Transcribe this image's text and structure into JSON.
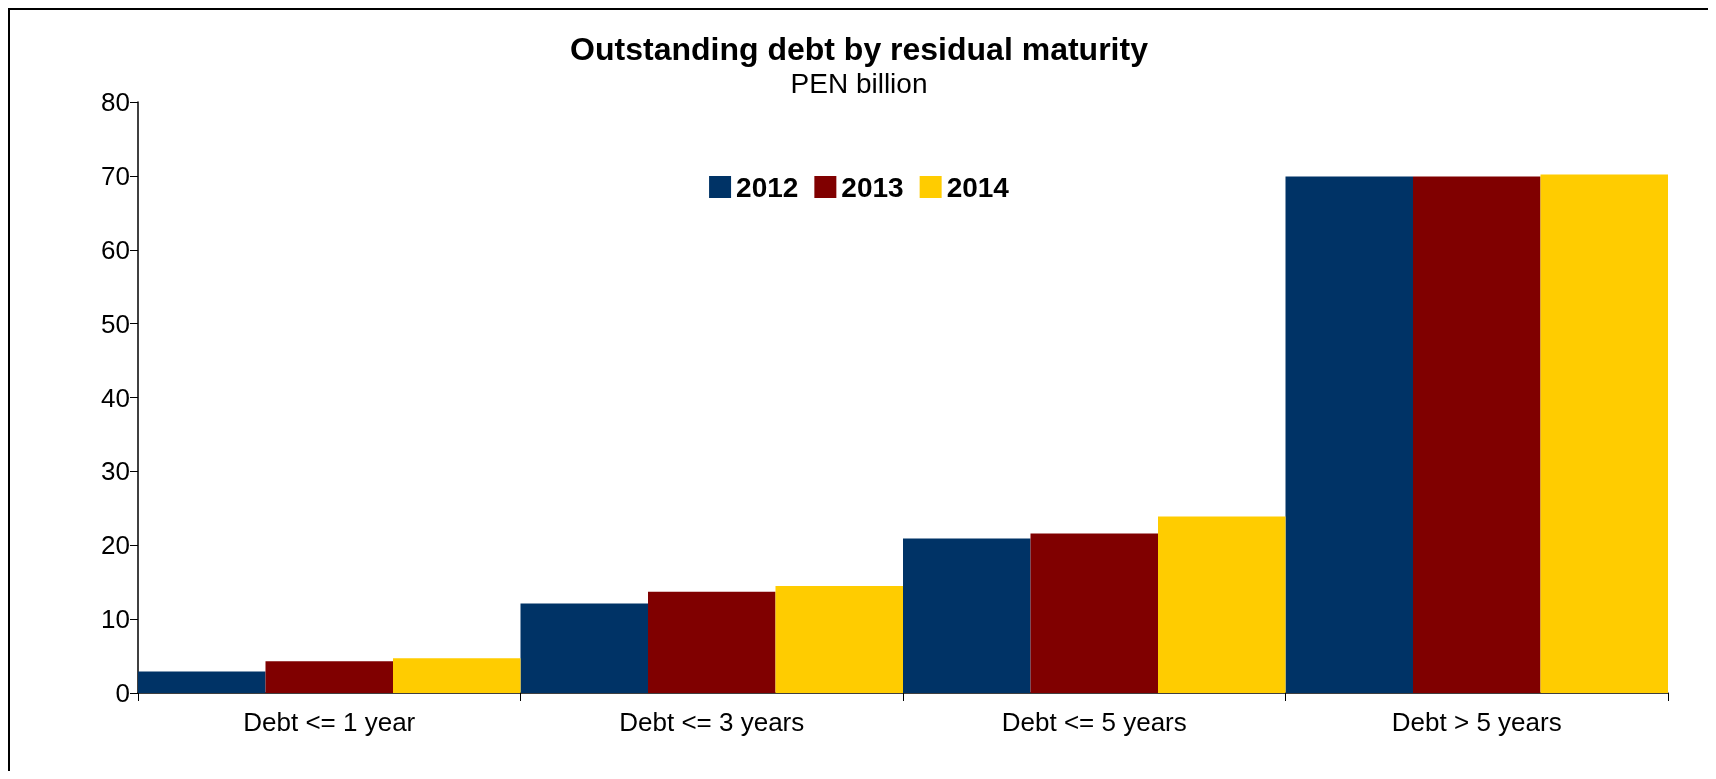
{
  "chart_data": {
    "type": "bar",
    "title": "Outstanding debt by residual maturity",
    "subtitle": "PEN billion",
    "categories": [
      "Debt <= 1 year",
      "Debt <= 3 years",
      "Debt <= 5 years",
      "Debt > 5 years"
    ],
    "series": [
      {
        "name": "2012",
        "color": "#003366",
        "values": [
          2.9,
          12.1,
          20.9,
          69.9
        ]
      },
      {
        "name": "2013",
        "color": "#800000",
        "values": [
          4.3,
          13.7,
          21.6,
          69.9
        ]
      },
      {
        "name": "2014",
        "color": "#ffcc00",
        "values": [
          4.7,
          14.5,
          23.9,
          70.2
        ]
      }
    ],
    "ylim": [
      0,
      80
    ],
    "yticks": [
      0,
      10,
      20,
      30,
      40,
      50,
      60,
      70,
      80
    ],
    "grid": false,
    "legend": "top"
  }
}
